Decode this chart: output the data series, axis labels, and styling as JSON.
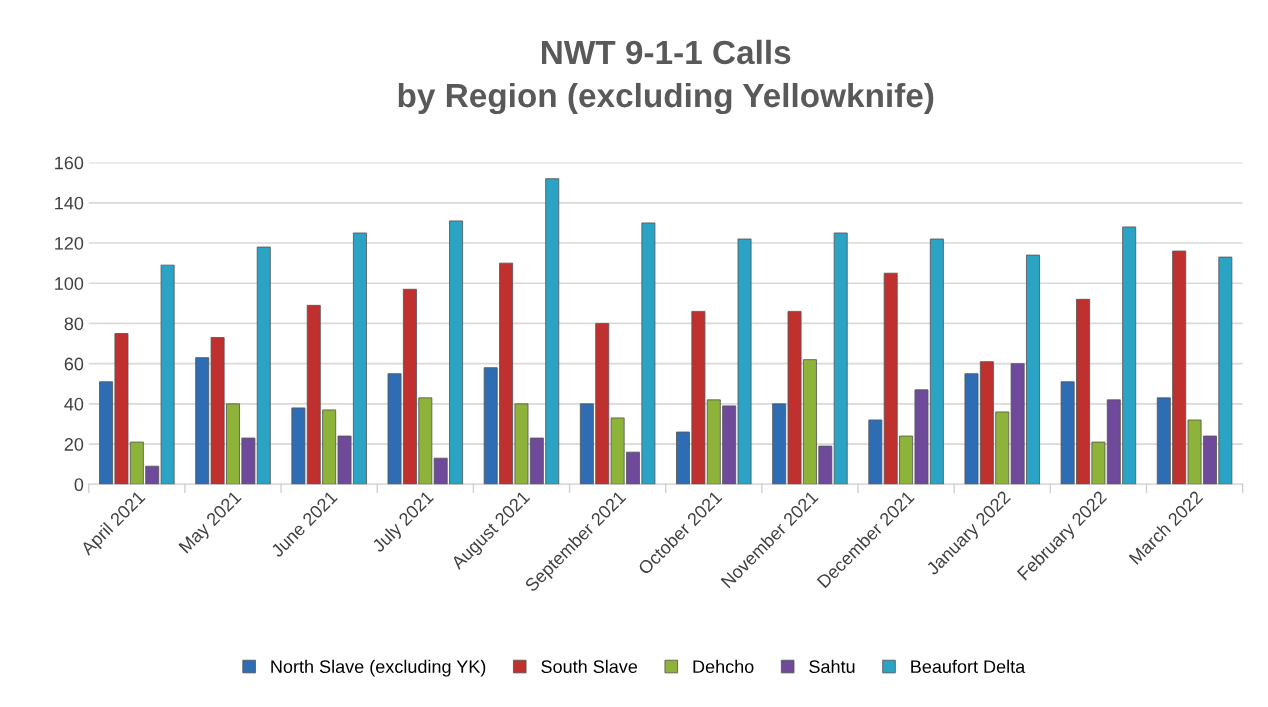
{
  "chart_data": {
    "type": "bar",
    "title": "NWT 9-1-1 Calls\nby Region (excluding Yellowknife)",
    "categories": [
      "April 2021",
      "May 2021",
      "June 2021",
      "July 2021",
      "August 2021",
      "September 2021",
      "October 2021",
      "November 2021",
      "December 2021",
      "January 2022",
      "February 2022",
      "March 2022"
    ],
    "series": [
      {
        "name": "North Slave (excluding YK)",
        "color": "#2e6db4",
        "values": [
          51,
          63,
          38,
          55,
          58,
          40,
          26,
          40,
          32,
          55,
          51,
          43
        ]
      },
      {
        "name": "South Slave",
        "color": "#c0302e",
        "values": [
          75,
          73,
          89,
          97,
          110,
          80,
          86,
          86,
          105,
          61,
          92,
          116
        ]
      },
      {
        "name": "Dehcho",
        "color": "#8db33a",
        "values": [
          21,
          40,
          37,
          43,
          40,
          33,
          42,
          62,
          24,
          36,
          21,
          32
        ]
      },
      {
        "name": "Sahtu",
        "color": "#6f4a9a",
        "values": [
          9,
          23,
          24,
          13,
          23,
          16,
          39,
          19,
          47,
          60,
          42,
          24
        ]
      },
      {
        "name": "Beaufort Delta",
        "color": "#2aa3c4",
        "values": [
          109,
          118,
          125,
          131,
          152,
          130,
          122,
          125,
          122,
          114,
          128,
          113
        ]
      }
    ],
    "ylim": [
      0,
      160
    ],
    "yticks": [
      0,
      20,
      40,
      60,
      80,
      100,
      120,
      140,
      160
    ],
    "grid": "y",
    "legend": "bottom"
  }
}
